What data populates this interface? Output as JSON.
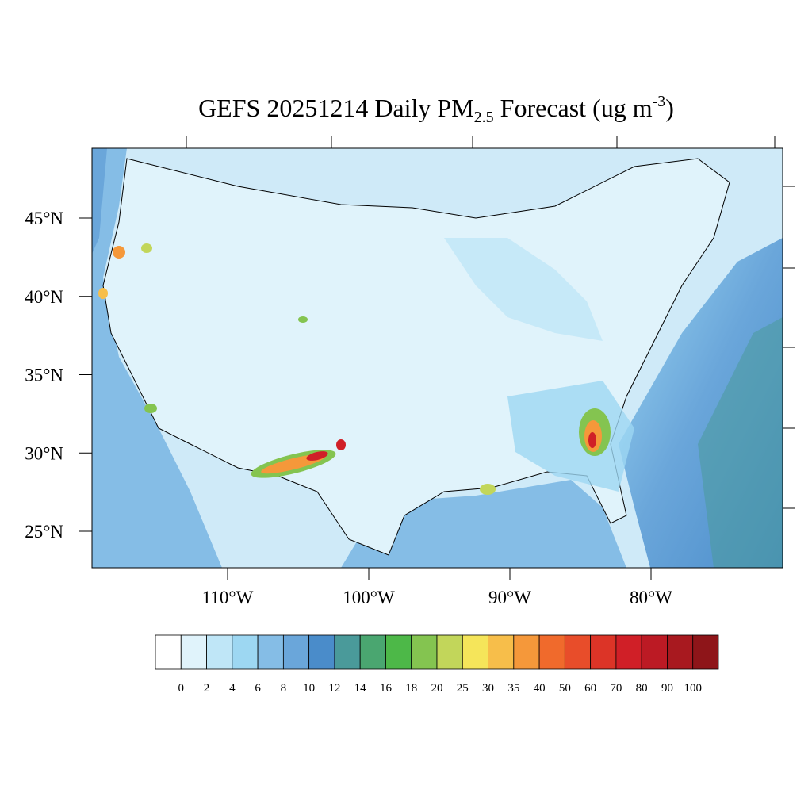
{
  "header": {
    "title": {
      "text": "GEFS 20251214 Daily PM",
      "subscript": "2.5",
      "text2": " Forecast (ug m",
      "superscript": "-3",
      "close": ")"
    }
  },
  "map": {
    "lat_ticks": [
      {
        "value": 25,
        "label": "25°N"
      },
      {
        "value": 30,
        "label": "30°N"
      },
      {
        "value": 35,
        "label": "35°N"
      },
      {
        "value": 40,
        "label": "40°N"
      },
      {
        "value": 45,
        "label": "45°N"
      }
    ],
    "lon_ticks": [
      {
        "value": -110,
        "label": "110°W"
      },
      {
        "value": -100,
        "label": "100°W"
      },
      {
        "value": -90,
        "label": "90°W"
      },
      {
        "value": -80,
        "label": "80°W"
      }
    ]
  },
  "colorbar": {
    "levels": [
      0,
      2,
      4,
      6,
      8,
      10,
      12,
      14,
      16,
      18,
      20,
      25,
      30,
      35,
      40,
      50,
      60,
      70,
      80,
      90,
      100
    ],
    "colors": [
      "#ffffff",
      "#e0f3fb",
      "#bfe6f7",
      "#9dd7f2",
      "#85bde6",
      "#6aa6da",
      "#4a8cca",
      "#4a9a9a",
      "#4aa670",
      "#4db848",
      "#84c450",
      "#c2d65a",
      "#f5e55a",
      "#f7be4a",
      "#f5983a",
      "#f06a2c",
      "#e84d2a",
      "#dc3427",
      "#d01f27",
      "#bc1a24",
      "#a8191f",
      "#8e1519"
    ]
  }
}
